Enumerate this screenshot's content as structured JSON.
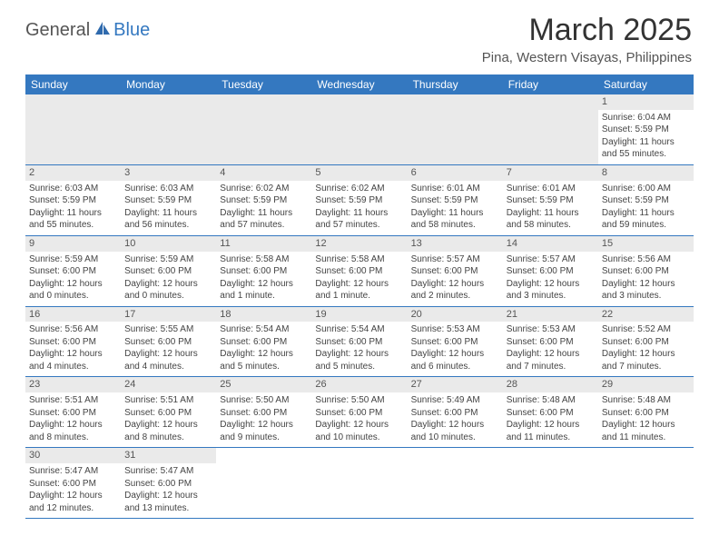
{
  "logo": {
    "part1": "General",
    "part2": "Blue"
  },
  "title": "March 2025",
  "location": "Pina, Western Visayas, Philippines",
  "colors": {
    "header_bg": "#3478c0",
    "header_fg": "#ffffff",
    "daynum_bg": "#eaeaea",
    "row_border": "#3478c0",
    "text": "#444444"
  },
  "day_headers": [
    "Sunday",
    "Monday",
    "Tuesday",
    "Wednesday",
    "Thursday",
    "Friday",
    "Saturday"
  ],
  "weeks": [
    [
      null,
      null,
      null,
      null,
      null,
      null,
      {
        "n": "1",
        "sr": "6:04 AM",
        "ss": "5:59 PM",
        "dl": "11 hours and 55 minutes."
      }
    ],
    [
      {
        "n": "2",
        "sr": "6:03 AM",
        "ss": "5:59 PM",
        "dl": "11 hours and 55 minutes."
      },
      {
        "n": "3",
        "sr": "6:03 AM",
        "ss": "5:59 PM",
        "dl": "11 hours and 56 minutes."
      },
      {
        "n": "4",
        "sr": "6:02 AM",
        "ss": "5:59 PM",
        "dl": "11 hours and 57 minutes."
      },
      {
        "n": "5",
        "sr": "6:02 AM",
        "ss": "5:59 PM",
        "dl": "11 hours and 57 minutes."
      },
      {
        "n": "6",
        "sr": "6:01 AM",
        "ss": "5:59 PM",
        "dl": "11 hours and 58 minutes."
      },
      {
        "n": "7",
        "sr": "6:01 AM",
        "ss": "5:59 PM",
        "dl": "11 hours and 58 minutes."
      },
      {
        "n": "8",
        "sr": "6:00 AM",
        "ss": "5:59 PM",
        "dl": "11 hours and 59 minutes."
      }
    ],
    [
      {
        "n": "9",
        "sr": "5:59 AM",
        "ss": "6:00 PM",
        "dl": "12 hours and 0 minutes."
      },
      {
        "n": "10",
        "sr": "5:59 AM",
        "ss": "6:00 PM",
        "dl": "12 hours and 0 minutes."
      },
      {
        "n": "11",
        "sr": "5:58 AM",
        "ss": "6:00 PM",
        "dl": "12 hours and 1 minute."
      },
      {
        "n": "12",
        "sr": "5:58 AM",
        "ss": "6:00 PM",
        "dl": "12 hours and 1 minute."
      },
      {
        "n": "13",
        "sr": "5:57 AM",
        "ss": "6:00 PM",
        "dl": "12 hours and 2 minutes."
      },
      {
        "n": "14",
        "sr": "5:57 AM",
        "ss": "6:00 PM",
        "dl": "12 hours and 3 minutes."
      },
      {
        "n": "15",
        "sr": "5:56 AM",
        "ss": "6:00 PM",
        "dl": "12 hours and 3 minutes."
      }
    ],
    [
      {
        "n": "16",
        "sr": "5:56 AM",
        "ss": "6:00 PM",
        "dl": "12 hours and 4 minutes."
      },
      {
        "n": "17",
        "sr": "5:55 AM",
        "ss": "6:00 PM",
        "dl": "12 hours and 4 minutes."
      },
      {
        "n": "18",
        "sr": "5:54 AM",
        "ss": "6:00 PM",
        "dl": "12 hours and 5 minutes."
      },
      {
        "n": "19",
        "sr": "5:54 AM",
        "ss": "6:00 PM",
        "dl": "12 hours and 5 minutes."
      },
      {
        "n": "20",
        "sr": "5:53 AM",
        "ss": "6:00 PM",
        "dl": "12 hours and 6 minutes."
      },
      {
        "n": "21",
        "sr": "5:53 AM",
        "ss": "6:00 PM",
        "dl": "12 hours and 7 minutes."
      },
      {
        "n": "22",
        "sr": "5:52 AM",
        "ss": "6:00 PM",
        "dl": "12 hours and 7 minutes."
      }
    ],
    [
      {
        "n": "23",
        "sr": "5:51 AM",
        "ss": "6:00 PM",
        "dl": "12 hours and 8 minutes."
      },
      {
        "n": "24",
        "sr": "5:51 AM",
        "ss": "6:00 PM",
        "dl": "12 hours and 8 minutes."
      },
      {
        "n": "25",
        "sr": "5:50 AM",
        "ss": "6:00 PM",
        "dl": "12 hours and 9 minutes."
      },
      {
        "n": "26",
        "sr": "5:50 AM",
        "ss": "6:00 PM",
        "dl": "12 hours and 10 minutes."
      },
      {
        "n": "27",
        "sr": "5:49 AM",
        "ss": "6:00 PM",
        "dl": "12 hours and 10 minutes."
      },
      {
        "n": "28",
        "sr": "5:48 AM",
        "ss": "6:00 PM",
        "dl": "12 hours and 11 minutes."
      },
      {
        "n": "29",
        "sr": "5:48 AM",
        "ss": "6:00 PM",
        "dl": "12 hours and 11 minutes."
      }
    ],
    [
      {
        "n": "30",
        "sr": "5:47 AM",
        "ss": "6:00 PM",
        "dl": "12 hours and 12 minutes."
      },
      {
        "n": "31",
        "sr": "5:47 AM",
        "ss": "6:00 PM",
        "dl": "12 hours and 13 minutes."
      },
      null,
      null,
      null,
      null,
      null
    ]
  ],
  "labels": {
    "sunrise": "Sunrise:",
    "sunset": "Sunset:",
    "daylight": "Daylight:"
  }
}
